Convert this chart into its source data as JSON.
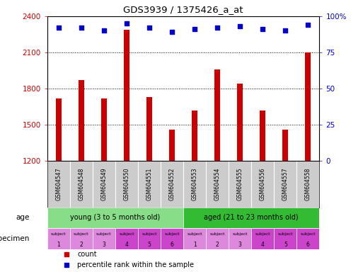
{
  "title": "GDS3939 / 1375426_a_at",
  "categories": [
    "GSM604547",
    "GSM604548",
    "GSM604549",
    "GSM604550",
    "GSM604551",
    "GSM604552",
    "GSM604553",
    "GSM604554",
    "GSM604555",
    "GSM604556",
    "GSM604557",
    "GSM604558"
  ],
  "bar_values": [
    1720,
    1870,
    1720,
    2290,
    1730,
    1460,
    1620,
    1960,
    1840,
    1620,
    1460,
    2100
  ],
  "scatter_pct": [
    92,
    92,
    90,
    95,
    92,
    89,
    91,
    92,
    93,
    91,
    90,
    94
  ],
  "bar_color": "#cc0000",
  "scatter_color": "#0000cc",
  "ylim_left": [
    1200,
    2400
  ],
  "ylim_right": [
    0,
    100
  ],
  "yticks_left": [
    1200,
    1500,
    1800,
    2100,
    2400
  ],
  "yticks_right": [
    0,
    25,
    50,
    75,
    100
  ],
  "ytick_right_labels": [
    "0",
    "25",
    "50",
    "75",
    "100%"
  ],
  "dotted_lines": [
    1500,
    1800,
    2100
  ],
  "age_groups": [
    {
      "label": "young (3 to 5 months old)",
      "start": 0,
      "end": 6,
      "color": "#88dd88"
    },
    {
      "label": "aged (21 to 23 months old)",
      "start": 6,
      "end": 12,
      "color": "#33bb33"
    }
  ],
  "specimen_labels_top": [
    "subject",
    "subject",
    "subject",
    "subject",
    "subject",
    "subject",
    "subject",
    "subject",
    "subject",
    "subject",
    "subject",
    "subject"
  ],
  "specimen_labels_bot": [
    "1",
    "2",
    "3",
    "4",
    "5",
    "6",
    "1",
    "2",
    "3",
    "4",
    "5",
    "6"
  ],
  "specimen_colors": [
    "#dd88dd",
    "#dd88dd",
    "#dd88dd",
    "#cc44cc",
    "#cc44cc",
    "#cc44cc",
    "#dd88dd",
    "#dd88dd",
    "#dd88dd",
    "#cc44cc",
    "#cc44cc",
    "#cc44cc"
  ],
  "age_label": "age",
  "specimen_label": "specimen",
  "legend_count_color": "#cc0000",
  "legend_scatter_color": "#0000cc",
  "plot_bg": "#ffffff",
  "xticklabel_bg": "#cccccc",
  "bar_width": 0.25
}
